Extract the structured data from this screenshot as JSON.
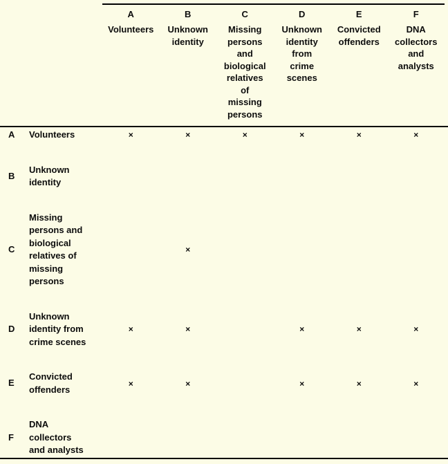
{
  "page": {
    "colors": {
      "background": "#FCFCE6",
      "text": "#0D0D0D",
      "rule": "#000000"
    }
  },
  "matrix": {
    "mark_glyph": "×",
    "columns": [
      {
        "key": "A",
        "header_lines": [
          "Volunteers"
        ]
      },
      {
        "key": "B",
        "header_lines": [
          "Unknown",
          "identity"
        ]
      },
      {
        "key": "C",
        "header_lines": [
          "Missing",
          "persons",
          "and",
          "biological",
          "relatives",
          "of",
          "missing",
          "persons"
        ]
      },
      {
        "key": "D",
        "header_lines": [
          "Unknown",
          "identity",
          "from",
          "crime",
          "scenes"
        ]
      },
      {
        "key": "E",
        "header_lines": [
          "Convicted",
          "offenders"
        ]
      },
      {
        "key": "F",
        "header_lines": [
          "DNA",
          "collectors",
          "and",
          "analysts"
        ]
      }
    ],
    "rows": [
      {
        "key": "A",
        "label_lines": [
          "Volunteers"
        ],
        "marks": [
          "A",
          "B",
          "C",
          "D",
          "E",
          "F"
        ]
      },
      {
        "key": "B",
        "label_lines": [
          "Unknown",
          "identity"
        ],
        "marks": []
      },
      {
        "key": "C",
        "label_lines": [
          "Missing",
          "persons and",
          "biological",
          "relatives of",
          "missing",
          "persons"
        ],
        "marks": [
          "B"
        ]
      },
      {
        "key": "D",
        "label_lines": [
          "Unknown",
          "identity from",
          "crime scenes"
        ],
        "marks": [
          "A",
          "B",
          "D",
          "E",
          "F"
        ]
      },
      {
        "key": "E",
        "label_lines": [
          "Convicted",
          "offenders"
        ],
        "marks": [
          "A",
          "B",
          "D",
          "E",
          "F"
        ]
      },
      {
        "key": "F",
        "label_lines": [
          "DNA",
          "collectors",
          "and analysts"
        ],
        "marks": []
      }
    ]
  }
}
